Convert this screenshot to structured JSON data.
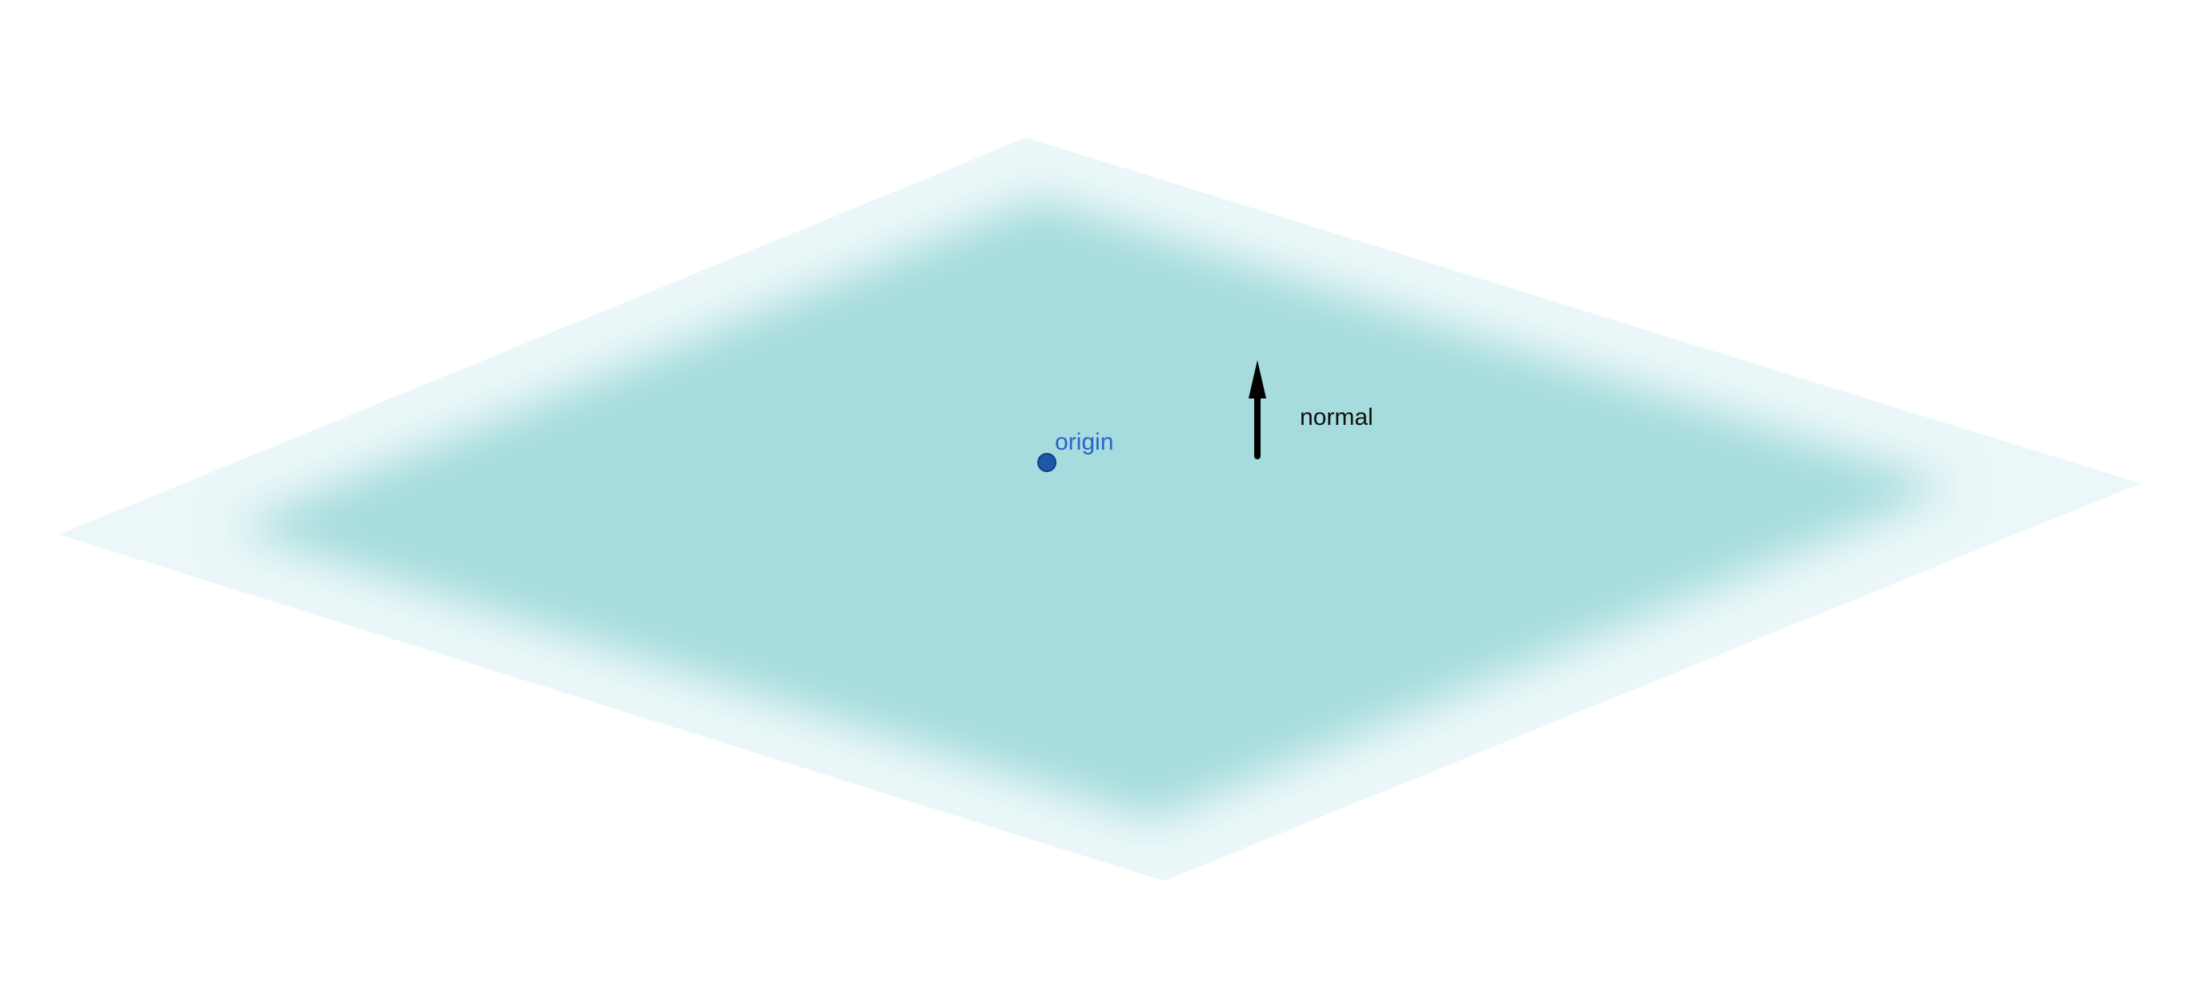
{
  "diagram": {
    "plane": {
      "color": "#a6dcdd"
    },
    "origin": {
      "label": "origin",
      "point_color": "#1d58a8",
      "label_color": "#2b63c9"
    },
    "normal": {
      "label": "normal",
      "arrow_color": "#000000",
      "label_color": "#111111"
    }
  }
}
